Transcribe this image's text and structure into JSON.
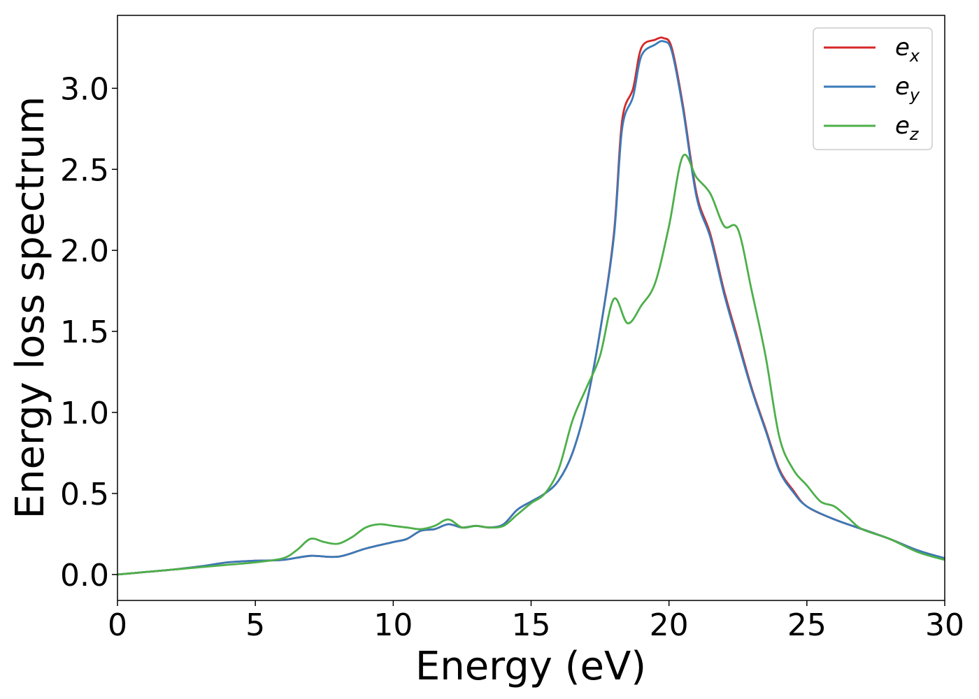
{
  "chart_data": {
    "type": "line",
    "title": "",
    "xlabel": "Energy (eV)",
    "ylabel": "Energy loss spectrum",
    "xlim": [
      0,
      30
    ],
    "ylim": [
      -0.16,
      3.45
    ],
    "xticks": [
      0,
      5,
      10,
      15,
      20,
      25,
      30
    ],
    "xtick_labels": [
      "0",
      "5",
      "10",
      "15",
      "20",
      "25",
      "30"
    ],
    "yticks": [
      0.0,
      0.5,
      1.0,
      1.5,
      2.0,
      2.5,
      3.0
    ],
    "ytick_labels": [
      "0.0",
      "0.5",
      "1.0",
      "1.5",
      "2.0",
      "2.5",
      "3.0"
    ],
    "grid": false,
    "legend_position": "top-right",
    "series": [
      {
        "name": "e_x",
        "label_main": "e",
        "label_sub": "x",
        "color": "#d62728",
        "points": [
          [
            0,
            0
          ],
          [
            1,
            0.015
          ],
          [
            2,
            0.03
          ],
          [
            3,
            0.05
          ],
          [
            4,
            0.075
          ],
          [
            5,
            0.085
          ],
          [
            6,
            0.09
          ],
          [
            7,
            0.115
          ],
          [
            8,
            0.11
          ],
          [
            9,
            0.16
          ],
          [
            10,
            0.2
          ],
          [
            10.5,
            0.22
          ],
          [
            11,
            0.27
          ],
          [
            11.5,
            0.28
          ],
          [
            12,
            0.31
          ],
          [
            12.5,
            0.29
          ],
          [
            13,
            0.3
          ],
          [
            13.5,
            0.29
          ],
          [
            14,
            0.31
          ],
          [
            14.5,
            0.4
          ],
          [
            15,
            0.45
          ],
          [
            15.5,
            0.5
          ],
          [
            16,
            0.58
          ],
          [
            16.5,
            0.75
          ],
          [
            17,
            1.05
          ],
          [
            17.5,
            1.5
          ],
          [
            18,
            2.1
          ],
          [
            18.3,
            2.8
          ],
          [
            18.7,
            3.0
          ],
          [
            19,
            3.25
          ],
          [
            19.5,
            3.3
          ],
          [
            19.8,
            3.31
          ],
          [
            20.1,
            3.25
          ],
          [
            20.5,
            2.9
          ],
          [
            21,
            2.35
          ],
          [
            21.5,
            2.1
          ],
          [
            22,
            1.75
          ],
          [
            22.5,
            1.45
          ],
          [
            23,
            1.15
          ],
          [
            23.5,
            0.9
          ],
          [
            24,
            0.65
          ],
          [
            24.5,
            0.52
          ],
          [
            25,
            0.42
          ],
          [
            26,
            0.34
          ],
          [
            27,
            0.28
          ],
          [
            28,
            0.22
          ],
          [
            29,
            0.15
          ],
          [
            30,
            0.1
          ]
        ]
      },
      {
        "name": "e_y",
        "label_main": "e",
        "label_sub": "y",
        "color": "#3a7ab8",
        "points": [
          [
            0,
            0
          ],
          [
            1,
            0.015
          ],
          [
            2,
            0.03
          ],
          [
            3,
            0.05
          ],
          [
            4,
            0.075
          ],
          [
            5,
            0.085
          ],
          [
            6,
            0.09
          ],
          [
            7,
            0.115
          ],
          [
            8,
            0.11
          ],
          [
            9,
            0.16
          ],
          [
            10,
            0.2
          ],
          [
            10.5,
            0.22
          ],
          [
            11,
            0.27
          ],
          [
            11.5,
            0.28
          ],
          [
            12,
            0.31
          ],
          [
            12.5,
            0.29
          ],
          [
            13,
            0.3
          ],
          [
            13.5,
            0.29
          ],
          [
            14,
            0.31
          ],
          [
            14.5,
            0.4
          ],
          [
            15,
            0.45
          ],
          [
            15.5,
            0.5
          ],
          [
            16,
            0.58
          ],
          [
            16.5,
            0.75
          ],
          [
            17,
            1.05
          ],
          [
            17.5,
            1.5
          ],
          [
            18,
            2.08
          ],
          [
            18.3,
            2.75
          ],
          [
            18.7,
            2.95
          ],
          [
            19,
            3.2
          ],
          [
            19.5,
            3.27
          ],
          [
            19.8,
            3.29
          ],
          [
            20.1,
            3.23
          ],
          [
            20.5,
            2.88
          ],
          [
            21,
            2.33
          ],
          [
            21.5,
            2.08
          ],
          [
            22,
            1.73
          ],
          [
            22.5,
            1.43
          ],
          [
            23,
            1.14
          ],
          [
            23.5,
            0.89
          ],
          [
            24,
            0.64
          ],
          [
            24.5,
            0.51
          ],
          [
            25,
            0.42
          ],
          [
            26,
            0.34
          ],
          [
            27,
            0.28
          ],
          [
            28,
            0.22
          ],
          [
            29,
            0.15
          ],
          [
            30,
            0.1
          ]
        ]
      },
      {
        "name": "e_z",
        "label_main": "e",
        "label_sub": "z",
        "color": "#4daf4a",
        "points": [
          [
            0,
            0
          ],
          [
            1,
            0.015
          ],
          [
            2,
            0.03
          ],
          [
            3,
            0.045
          ],
          [
            4,
            0.06
          ],
          [
            5,
            0.075
          ],
          [
            6,
            0.1
          ],
          [
            6.5,
            0.15
          ],
          [
            7,
            0.22
          ],
          [
            7.5,
            0.2
          ],
          [
            8,
            0.19
          ],
          [
            8.5,
            0.23
          ],
          [
            9,
            0.29
          ],
          [
            9.5,
            0.31
          ],
          [
            10,
            0.3
          ],
          [
            10.5,
            0.29
          ],
          [
            11,
            0.28
          ],
          [
            11.5,
            0.3
          ],
          [
            12,
            0.34
          ],
          [
            12.5,
            0.29
          ],
          [
            13,
            0.3
          ],
          [
            13.5,
            0.29
          ],
          [
            14,
            0.3
          ],
          [
            14.5,
            0.37
          ],
          [
            15,
            0.44
          ],
          [
            15.5,
            0.5
          ],
          [
            16,
            0.65
          ],
          [
            16.5,
            0.95
          ],
          [
            17,
            1.15
          ],
          [
            17.5,
            1.35
          ],
          [
            18,
            1.7
          ],
          [
            18.5,
            1.55
          ],
          [
            19,
            1.66
          ],
          [
            19.5,
            1.8
          ],
          [
            20,
            2.15
          ],
          [
            20.5,
            2.58
          ],
          [
            21,
            2.45
          ],
          [
            21.5,
            2.35
          ],
          [
            22,
            2.15
          ],
          [
            22.5,
            2.13
          ],
          [
            23,
            1.75
          ],
          [
            23.5,
            1.35
          ],
          [
            24,
            0.85
          ],
          [
            24.5,
            0.65
          ],
          [
            25,
            0.55
          ],
          [
            25.5,
            0.45
          ],
          [
            26,
            0.42
          ],
          [
            26.5,
            0.35
          ],
          [
            27,
            0.28
          ],
          [
            28,
            0.22
          ],
          [
            29,
            0.14
          ],
          [
            30,
            0.09
          ]
        ]
      }
    ]
  }
}
